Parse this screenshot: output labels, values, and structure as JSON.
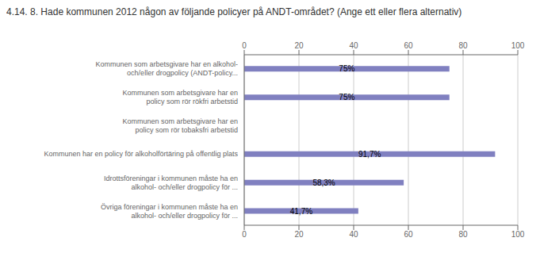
{
  "chart_data": {
    "type": "bar",
    "orientation": "horizontal",
    "title": "4.14. 8. Hade kommunen 2012 någon av följande policyer på ANDT-området? (Ange ett eller flera alternativ)",
    "categories": [
      "Kommunen som arbetsgivare har en alkohol-\noch/eller drogpolicy (ANDT-policy...",
      "Kommunen som arbetsgivare har en\npolicy som rör rökfri arbetstid",
      "Kommunen som arbetsgivare har en\npolicy som rör tobaksfri arbetstid",
      "Kommunen har en policy för alkoholförtäring på offentlig plats",
      "Idrottsföreningar i kommunen måste ha en\nalkohol- och/eller drogpolicy för ...",
      "Övriga föreningar i kommunen måste ha en\nalkohol- och/eller drogpolicy för ..."
    ],
    "values": [
      75.0,
      75.0,
      0.0,
      91.7,
      58.3,
      41.7
    ],
    "value_labels": [
      "75%",
      "75%",
      null,
      "91,7%",
      "58,3%",
      "41,7%"
    ],
    "data_labels": true,
    "color": "#8080c0",
    "xlim": [
      0,
      100
    ],
    "xticks": [
      0,
      20,
      40,
      60,
      80,
      100
    ],
    "grid": true
  }
}
